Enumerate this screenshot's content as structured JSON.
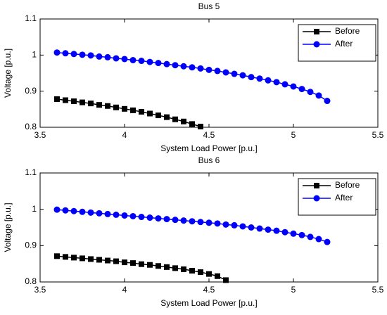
{
  "chart_data": [
    {
      "type": "line",
      "title": "Bus 5",
      "xlabel": "System Load Power [p.u.]",
      "ylabel": "Voltage [p.u.]",
      "xlim": [
        3.5,
        5.5
      ],
      "ylim": [
        0.8,
        1.1
      ],
      "xticks": [
        3.5,
        4,
        4.5,
        5,
        5.5
      ],
      "yticks": [
        0.8,
        0.9,
        1,
        1.1
      ],
      "legend": "upper right",
      "series": [
        {
          "name": "Before",
          "color": "#000000",
          "marker": "square",
          "x": [
            3.6,
            3.65,
            3.7,
            3.75,
            3.8,
            3.85,
            3.9,
            3.95,
            4.0,
            4.05,
            4.1,
            4.15,
            4.2,
            4.25,
            4.3,
            4.35,
            4.4,
            4.45
          ],
          "values": [
            0.878,
            0.875,
            0.872,
            0.869,
            0.866,
            0.862,
            0.859,
            0.855,
            0.851,
            0.847,
            0.843,
            0.838,
            0.833,
            0.828,
            0.822,
            0.816,
            0.809,
            0.802
          ]
        },
        {
          "name": "After",
          "color": "#0000ff",
          "marker": "circle",
          "x": [
            3.6,
            3.65,
            3.7,
            3.75,
            3.8,
            3.85,
            3.9,
            3.95,
            4.0,
            4.05,
            4.1,
            4.15,
            4.2,
            4.25,
            4.3,
            4.35,
            4.4,
            4.45,
            4.5,
            4.55,
            4.6,
            4.65,
            4.7,
            4.75,
            4.8,
            4.85,
            4.9,
            4.95,
            5.0,
            5.05,
            5.1,
            5.15,
            5.2
          ],
          "values": [
            1.007,
            1.005,
            1.003,
            1.001,
            0.999,
            0.996,
            0.994,
            0.991,
            0.989,
            0.986,
            0.984,
            0.981,
            0.978,
            0.975,
            0.972,
            0.969,
            0.966,
            0.963,
            0.959,
            0.956,
            0.952,
            0.948,
            0.944,
            0.939,
            0.935,
            0.93,
            0.925,
            0.919,
            0.913,
            0.906,
            0.898,
            0.888,
            0.873
          ]
        }
      ]
    },
    {
      "type": "line",
      "title": "Bus 6",
      "xlabel": "System Load Power [p.u.]",
      "ylabel": "Voltage [p.u.]",
      "xlim": [
        3.5,
        5.5
      ],
      "ylim": [
        0.8,
        1.1
      ],
      "xticks": [
        3.5,
        4,
        4.5,
        5,
        5.5
      ],
      "yticks": [
        0.8,
        0.9,
        1,
        1.1
      ],
      "legend": "upper right",
      "series": [
        {
          "name": "Before",
          "color": "#000000",
          "marker": "square",
          "x": [
            3.6,
            3.65,
            3.7,
            3.75,
            3.8,
            3.85,
            3.9,
            3.95,
            4.0,
            4.05,
            4.1,
            4.15,
            4.2,
            4.25,
            4.3,
            4.35,
            4.4,
            4.45,
            4.5,
            4.55,
            4.6
          ],
          "values": [
            0.871,
            0.869,
            0.867,
            0.865,
            0.863,
            0.861,
            0.859,
            0.857,
            0.854,
            0.852,
            0.849,
            0.847,
            0.844,
            0.841,
            0.838,
            0.835,
            0.831,
            0.827,
            0.822,
            0.816,
            0.805
          ]
        },
        {
          "name": "After",
          "color": "#0000ff",
          "marker": "circle",
          "x": [
            3.6,
            3.65,
            3.7,
            3.75,
            3.8,
            3.85,
            3.9,
            3.95,
            4.0,
            4.05,
            4.1,
            4.15,
            4.2,
            4.25,
            4.3,
            4.35,
            4.4,
            4.45,
            4.5,
            4.55,
            4.6,
            4.65,
            4.7,
            4.75,
            4.8,
            4.85,
            4.9,
            4.95,
            5.0,
            5.05,
            5.1,
            5.15,
            5.2
          ],
          "values": [
            0.999,
            0.997,
            0.995,
            0.993,
            0.991,
            0.989,
            0.987,
            0.985,
            0.983,
            0.981,
            0.979,
            0.977,
            0.975,
            0.973,
            0.971,
            0.969,
            0.967,
            0.965,
            0.963,
            0.961,
            0.958,
            0.956,
            0.953,
            0.95,
            0.947,
            0.944,
            0.941,
            0.937,
            0.933,
            0.929,
            0.924,
            0.918,
            0.91
          ]
        }
      ]
    }
  ]
}
